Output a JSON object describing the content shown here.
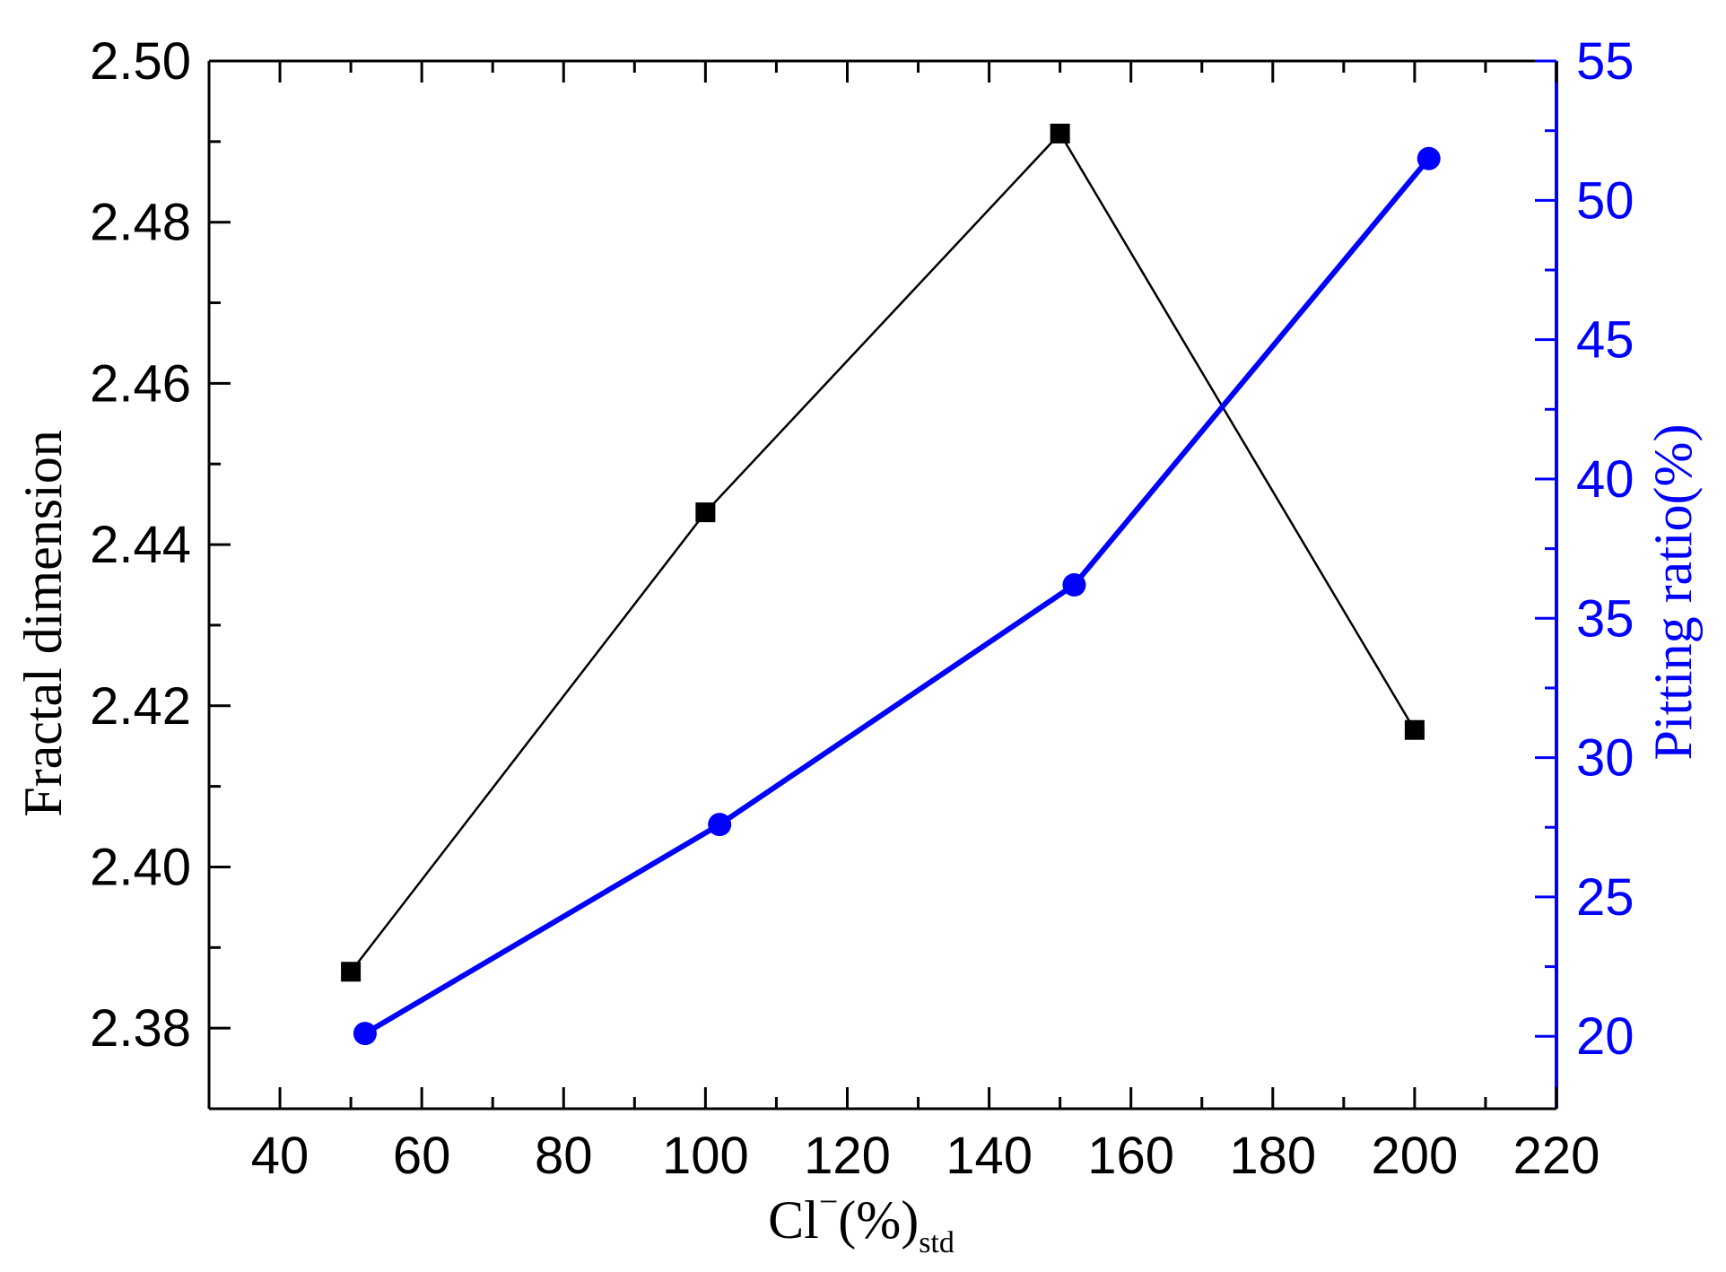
{
  "chart_data": {
    "type": "line",
    "xlabel": {
      "main": "Cl",
      "sup": "−",
      "rest": "(%)",
      "sub": "std"
    },
    "ylabel_left": "Fractal dimension",
    "ylabel_right": "Pitting ratio(%)",
    "xlim": [
      30,
      220
    ],
    "ylim_left": [
      2.37,
      2.5
    ],
    "ylim_right": [
      17.4,
      55
    ],
    "x_ticks": [
      "40",
      "60",
      "80",
      "100",
      "120",
      "140",
      "160",
      "180",
      "200",
      "220"
    ],
    "y_left_ticks": [
      "2.38",
      "2.40",
      "2.42",
      "2.44",
      "2.46",
      "2.48",
      "2.50"
    ],
    "y_right_ticks": [
      "20",
      "25",
      "30",
      "35",
      "40",
      "45",
      "50",
      "55"
    ],
    "grid": false,
    "series": [
      {
        "axis": "left",
        "marker": "square",
        "color": "#000000",
        "x": [
          50,
          100,
          150,
          200
        ],
        "y": [
          2.387,
          2.444,
          2.491,
          2.417
        ]
      },
      {
        "axis": "right",
        "marker": "circle",
        "color": "#0000ff",
        "x": [
          52,
          102,
          152,
          202
        ],
        "y": [
          20.1,
          27.6,
          36.2,
          51.5
        ]
      }
    ]
  }
}
